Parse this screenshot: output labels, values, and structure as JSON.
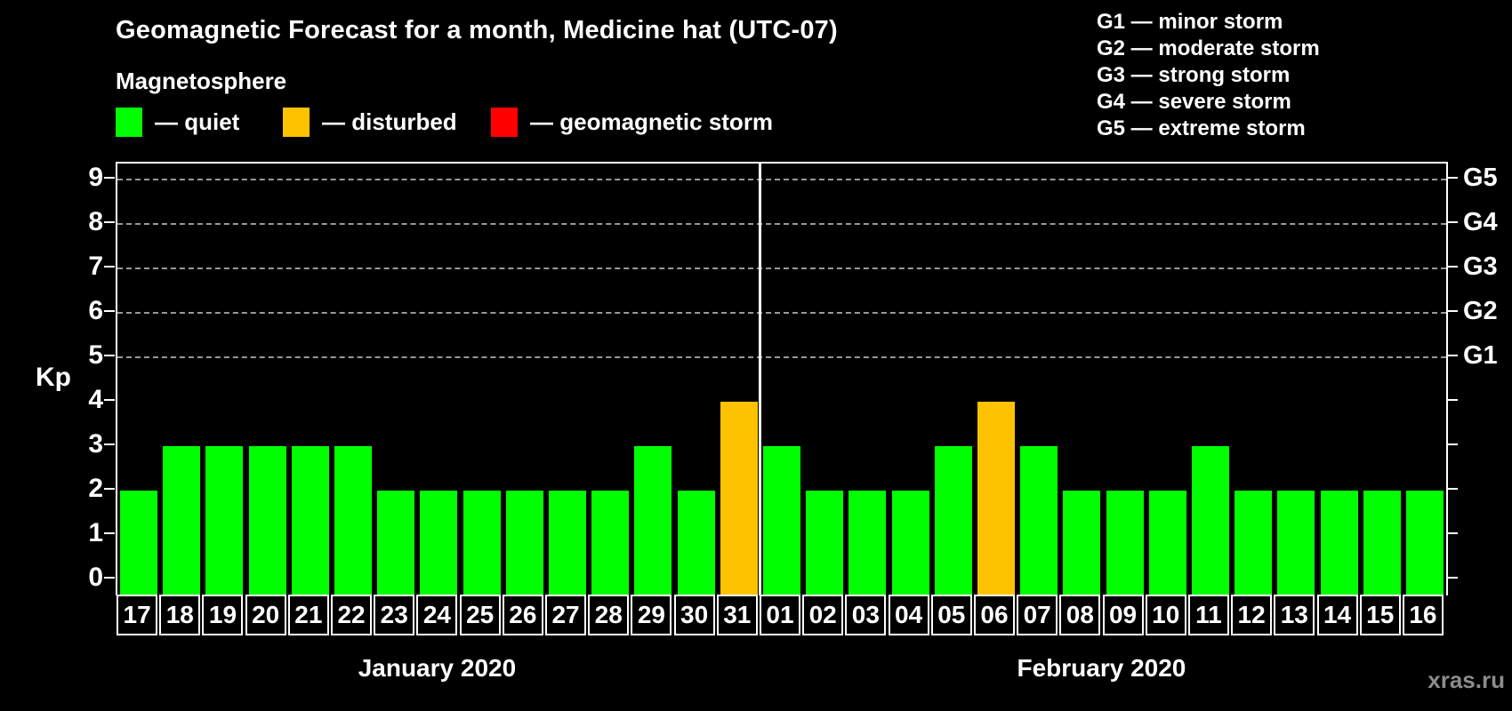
{
  "title": "Geomagnetic Forecast for a month, Medicine hat (UTC-07)",
  "dash": "—",
  "legend": {
    "heading": "Magnetosphere",
    "items": [
      {
        "label": "quiet",
        "color": "#00ff00"
      },
      {
        "label": "disturbed",
        "color": "#ffc200"
      },
      {
        "label": "geomagnetic storm",
        "color": "#ff0000"
      }
    ]
  },
  "g_legend": [
    {
      "code": "G1",
      "label": "minor storm"
    },
    {
      "code": "G2",
      "label": "moderate storm"
    },
    {
      "code": "G3",
      "label": "strong storm"
    },
    {
      "code": "G4",
      "label": "severe storm"
    },
    {
      "code": "G5",
      "label": "extreme storm"
    }
  ],
  "watermark": "xras.ru",
  "chart_data": {
    "type": "bar",
    "title": "Geomagnetic Forecast for a month, Medicine hat (UTC-07)",
    "ylabel": "Kp",
    "ylim": [
      0,
      9
    ],
    "yticks": [
      0,
      1,
      2,
      3,
      4,
      5,
      6,
      7,
      8,
      9
    ],
    "grid_levels": [
      5,
      6,
      7,
      8,
      9
    ],
    "grid_on": true,
    "legend_position": "top",
    "right_ticks": [
      {
        "label": "G1",
        "kp": 5
      },
      {
        "label": "G2",
        "kp": 6
      },
      {
        "label": "G3",
        "kp": 7
      },
      {
        "label": "G4",
        "kp": 8
      },
      {
        "label": "G5",
        "kp": 9
      }
    ],
    "status_colors": {
      "quiet": "#00ff00",
      "disturbed": "#ffc200",
      "storm": "#ff0000"
    },
    "months": [
      {
        "label": "January 2020",
        "days": [
          {
            "day": "17",
            "kp": 2,
            "status": "quiet"
          },
          {
            "day": "18",
            "kp": 3,
            "status": "quiet"
          },
          {
            "day": "19",
            "kp": 3,
            "status": "quiet"
          },
          {
            "day": "20",
            "kp": 3,
            "status": "quiet"
          },
          {
            "day": "21",
            "kp": 3,
            "status": "quiet"
          },
          {
            "day": "22",
            "kp": 3,
            "status": "quiet"
          },
          {
            "day": "23",
            "kp": 2,
            "status": "quiet"
          },
          {
            "day": "24",
            "kp": 2,
            "status": "quiet"
          },
          {
            "day": "25",
            "kp": 2,
            "status": "quiet"
          },
          {
            "day": "26",
            "kp": 2,
            "status": "quiet"
          },
          {
            "day": "27",
            "kp": 2,
            "status": "quiet"
          },
          {
            "day": "28",
            "kp": 2,
            "status": "quiet"
          },
          {
            "day": "29",
            "kp": 3,
            "status": "quiet"
          },
          {
            "day": "30",
            "kp": 2,
            "status": "quiet"
          },
          {
            "day": "31",
            "kp": 4,
            "status": "disturbed"
          }
        ]
      },
      {
        "label": "February 2020",
        "days": [
          {
            "day": "01",
            "kp": 3,
            "status": "quiet"
          },
          {
            "day": "02",
            "kp": 2,
            "status": "quiet"
          },
          {
            "day": "03",
            "kp": 2,
            "status": "quiet"
          },
          {
            "day": "04",
            "kp": 2,
            "status": "quiet"
          },
          {
            "day": "05",
            "kp": 3,
            "status": "quiet"
          },
          {
            "day": "06",
            "kp": 4,
            "status": "disturbed"
          },
          {
            "day": "07",
            "kp": 3,
            "status": "quiet"
          },
          {
            "day": "08",
            "kp": 2,
            "status": "quiet"
          },
          {
            "day": "09",
            "kp": 2,
            "status": "quiet"
          },
          {
            "day": "10",
            "kp": 2,
            "status": "quiet"
          },
          {
            "day": "11",
            "kp": 3,
            "status": "quiet"
          },
          {
            "day": "12",
            "kp": 2,
            "status": "quiet"
          },
          {
            "day": "13",
            "kp": 2,
            "status": "quiet"
          },
          {
            "day": "14",
            "kp": 2,
            "status": "quiet"
          },
          {
            "day": "15",
            "kp": 2,
            "status": "quiet"
          },
          {
            "day": "16",
            "kp": 2,
            "status": "quiet"
          }
        ]
      }
    ]
  }
}
